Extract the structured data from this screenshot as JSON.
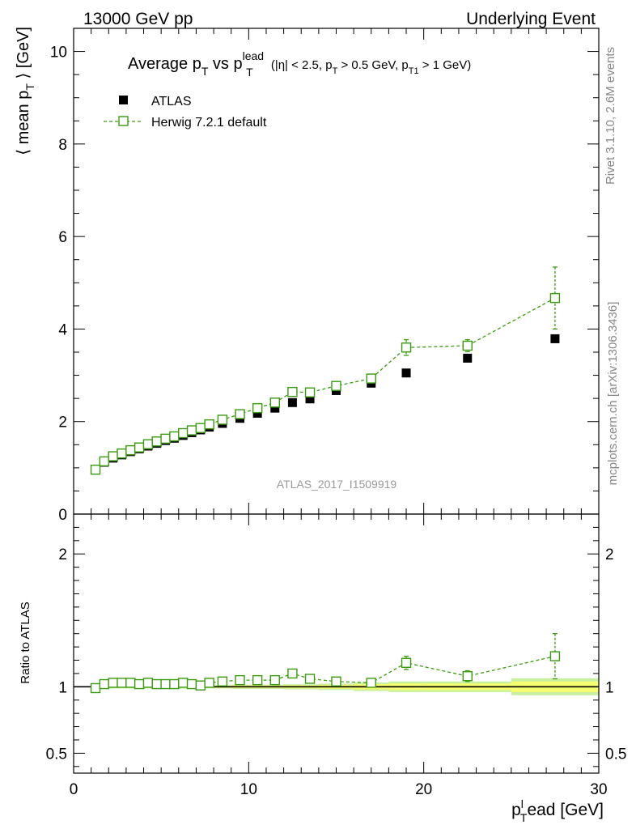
{
  "header": {
    "left": "13000 GeV pp",
    "right": "Underlying Event"
  },
  "side_text": {
    "rivet": "Rivet 3.1.10,  2.6M events",
    "mcplots": "mcplots.cern.ch [arXiv:1306.3436]"
  },
  "watermark": "ATLAS_2017_I1509919",
  "title": {
    "main": "Average p",
    "main_sub": "T",
    "vs": " vs p",
    "vs_sub": "T",
    "vs_sup": "lead",
    "cuts_open": " (|η| < 2.5, p",
    "cuts_sub1": "T",
    "cuts_mid": " > 0.5 GeV, p",
    "cuts_sub2": "T1",
    "cuts_close": " > 1 GeV)"
  },
  "legend": {
    "atlas": "ATLAS",
    "herwig": "Herwig 7.2.1 default"
  },
  "colors": {
    "data": "#000000",
    "mc": "#3a9a10",
    "band_inner": "#f5ff70",
    "band_outer": "#c8f0a0"
  },
  "chart_data": [
    {
      "type": "scatter",
      "panel": "main",
      "ylabel_main": "⟨ mean p",
      "ylabel_sub": "T",
      "ylabel_tail": " ⟩ [GeV]",
      "xlim": [
        0,
        30
      ],
      "ylim": [
        0,
        10.5
      ],
      "y_ticks": [
        0,
        2,
        4,
        6,
        8,
        10
      ],
      "series": [
        {
          "name": "ATLAS",
          "marker": "filled-square",
          "x": [
            1.25,
            1.75,
            2.25,
            2.75,
            3.25,
            3.75,
            4.25,
            4.75,
            5.25,
            5.75,
            6.25,
            6.75,
            7.25,
            7.75,
            8.5,
            9.5,
            10.5,
            11.5,
            12.5,
            13.5,
            15,
            17,
            19,
            22.5,
            27.5
          ],
          "y": [
            0.97,
            1.12,
            1.21,
            1.28,
            1.35,
            1.41,
            1.47,
            1.53,
            1.59,
            1.64,
            1.7,
            1.76,
            1.82,
            1.88,
            1.96,
            2.07,
            2.18,
            2.29,
            2.41,
            2.49,
            2.67,
            2.83,
            3.05,
            3.37,
            3.79
          ]
        },
        {
          "name": "Herwig 7.2.1 default",
          "marker": "open-square-dashed-line",
          "x": [
            1.25,
            1.75,
            2.25,
            2.75,
            3.25,
            3.75,
            4.25,
            4.75,
            5.25,
            5.75,
            6.25,
            6.75,
            7.25,
            7.75,
            8.5,
            9.5,
            10.5,
            11.5,
            12.5,
            13.5,
            15,
            17,
            19,
            22.5,
            27.5
          ],
          "y": [
            0.96,
            1.14,
            1.25,
            1.31,
            1.38,
            1.44,
            1.51,
            1.57,
            1.63,
            1.68,
            1.75,
            1.81,
            1.86,
            1.94,
            2.04,
            2.16,
            2.29,
            2.41,
            2.64,
            2.63,
            2.77,
            2.93,
            3.6,
            3.64,
            4.67
          ],
          "y_err": [
            0.02,
            0.02,
            0.02,
            0.02,
            0.02,
            0.02,
            0.02,
            0.02,
            0.02,
            0.02,
            0.02,
            0.02,
            0.02,
            0.02,
            0.03,
            0.03,
            0.04,
            0.04,
            0.05,
            0.05,
            0.06,
            0.08,
            0.17,
            0.13,
            0.67
          ]
        }
      ]
    },
    {
      "type": "scatter",
      "panel": "ratio",
      "ylabel": "Ratio to ATLAS",
      "xlabel_main": "p",
      "xlabel_sub": "T",
      "xlabel_sup": "l",
      "xlabel_tail": "ead [GeV]",
      "xlim": [
        0,
        30
      ],
      "x_ticks": [
        0,
        10,
        20,
        30
      ],
      "ylim": [
        0.35,
        2.3
      ],
      "y_ticks": [
        0.5,
        1,
        2
      ],
      "y_tick_labels": [
        "0.5",
        "1",
        "2"
      ],
      "band": {
        "x": [
          1,
          2,
          3,
          4,
          5,
          6,
          7,
          8,
          9,
          10,
          12,
          14,
          16,
          18,
          20,
          25,
          30
        ],
        "half_width": [
          0.01,
          0.008,
          0.008,
          0.008,
          0.008,
          0.008,
          0.008,
          0.008,
          0.01,
          0.01,
          0.012,
          0.015,
          0.02,
          0.025,
          0.025,
          0.04,
          0.04
        ]
      },
      "series": [
        {
          "name": "Herwig 7.2.1 default",
          "x": [
            1.25,
            1.75,
            2.25,
            2.75,
            3.25,
            3.75,
            4.25,
            4.75,
            5.25,
            5.75,
            6.25,
            6.75,
            7.25,
            7.75,
            8.5,
            9.5,
            10.5,
            11.5,
            12.5,
            13.5,
            15,
            17,
            19,
            22.5,
            27.5
          ],
          "y": [
            0.99,
            1.02,
            1.03,
            1.03,
            1.03,
            1.02,
            1.03,
            1.02,
            1.02,
            1.02,
            1.03,
            1.02,
            1.01,
            1.03,
            1.04,
            1.05,
            1.05,
            1.05,
            1.1,
            1.06,
            1.04,
            1.03,
            1.18,
            1.08,
            1.23
          ],
          "y_err": [
            0.01,
            0.01,
            0.01,
            0.01,
            0.01,
            0.01,
            0.01,
            0.01,
            0.01,
            0.01,
            0.01,
            0.01,
            0.01,
            0.01,
            0.015,
            0.015,
            0.02,
            0.02,
            0.02,
            0.02,
            0.02,
            0.03,
            0.05,
            0.04,
            0.17
          ]
        }
      ]
    }
  ]
}
